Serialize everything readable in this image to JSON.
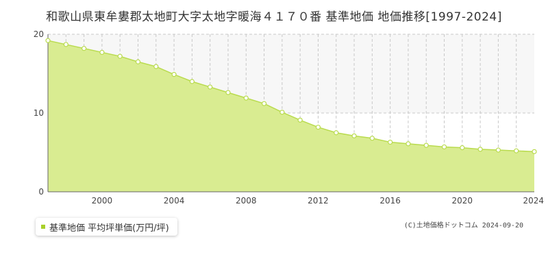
{
  "colors": {
    "fill": "#d9ec91",
    "line": "#b9db4e",
    "point_fill": "#ffffff",
    "point_stroke": "#b9db4e",
    "grid": "#c8c8c8",
    "band": "#f7f7f7",
    "legend_marker": "#a8d02a"
  },
  "chart_data": {
    "type": "area",
    "title": "和歌山県東牟婁郡太地町大字太地字暖海４１７０番 基準地価 地価推移[1997-2024]",
    "xlabel": "",
    "ylabel": "",
    "xlim": [
      1997,
      2024
    ],
    "ylim": [
      0,
      20
    ],
    "x_ticks": [
      "2000",
      "2004",
      "2008",
      "2012",
      "2016",
      "2020",
      "2024"
    ],
    "y_ticks": [
      "0",
      "10",
      "20"
    ],
    "grid": true,
    "legend_position": "bottom-left",
    "x": [
      1997,
      1998,
      1999,
      2000,
      2001,
      2002,
      2003,
      2004,
      2005,
      2006,
      2007,
      2008,
      2009,
      2010,
      2011,
      2012,
      2013,
      2014,
      2015,
      2016,
      2017,
      2018,
      2019,
      2020,
      2021,
      2022,
      2023,
      2024
    ],
    "series": [
      {
        "name": "基準地価 平均坪単価(万円/坪)",
        "values": [
          19.2,
          18.7,
          18.2,
          17.7,
          17.2,
          16.5,
          15.9,
          14.9,
          14.0,
          13.3,
          12.6,
          11.9,
          11.2,
          10.1,
          9.1,
          8.2,
          7.5,
          7.1,
          6.8,
          6.3,
          6.1,
          5.9,
          5.7,
          5.6,
          5.4,
          5.3,
          5.2,
          5.1
        ]
      }
    ]
  },
  "legend": {
    "label": "基準地価 平均坪単価(万円/坪)"
  },
  "credit": "(C)土地価格ドットコム 2024-09-20"
}
